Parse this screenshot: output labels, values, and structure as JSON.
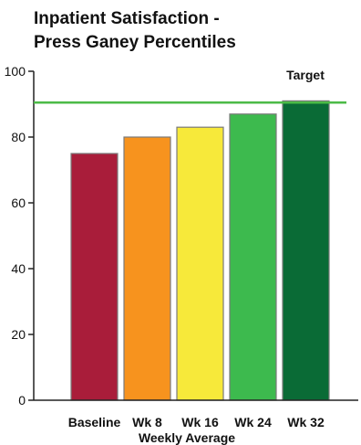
{
  "chart_data": {
    "type": "bar",
    "title_lines": [
      "Inpatient Satisfaction -",
      "Press Ganey Percentiles"
    ],
    "xlabel": "Weekly Average",
    "ylabel": "",
    "ylim": [
      0,
      100
    ],
    "yticks": [
      0,
      20,
      40,
      60,
      80,
      100
    ],
    "categories": [
      "Baseline",
      "Wk 8",
      "Wk 16",
      "Wk 24",
      "Wk 32"
    ],
    "values": [
      75,
      80,
      83,
      87,
      91
    ],
    "colors": [
      "#A91D3A",
      "#F7931E",
      "#F7E93A",
      "#3DBA4E",
      "#0A6B36"
    ],
    "target": {
      "label": "Target",
      "value": 90.5,
      "color": "#4CBB47"
    },
    "grid": false,
    "legend": "none"
  }
}
